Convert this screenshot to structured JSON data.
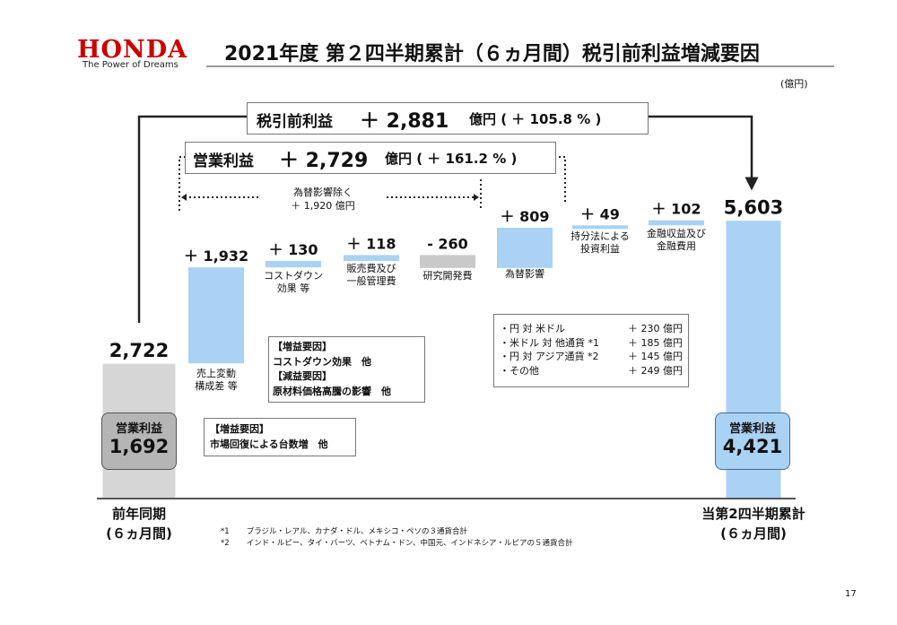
{
  "header": {
    "logo_word": "HONDA",
    "logo_tagline": "The Power of Dreams",
    "title": "2021年度 第２四半期累計（６ヵ月間）税引前利益増減要因",
    "unit": "(億円)",
    "page_number": "17"
  },
  "annotations": {
    "pretax_label": "税引前利益",
    "pretax_delta": "＋ 2,881",
    "pretax_unit_pct": "億円 ( ＋ 105.8 % )",
    "op_label": "営業利益",
    "op_delta": "＋ 2,729",
    "op_unit_pct": "億円 ( ＋ 161.2 % )",
    "fx_excl_line1": "為替影響除く",
    "fx_excl_line2": "＋ 1,920 億円"
  },
  "boxes": {
    "prior_op_label": "営業利益",
    "prior_op_value": "1,692",
    "current_op_label": "営業利益",
    "current_op_value": "4,421",
    "cost_box": [
      "【増益要因】",
      "コストダウン効果　他",
      "【減益要因】",
      "原材料価格高騰の影響　他"
    ],
    "sales_box": [
      "【増益要因】",
      "市場回復による台数増　他"
    ],
    "fx_breakdown": [
      {
        "label": "・円 対 米ドル",
        "value": "＋ 230 億円"
      },
      {
        "label": "・米ドル 対 他通貨 *1",
        "value": "＋ 185 億円"
      },
      {
        "label": "・円 対 アジア通貨 *2",
        "value": "＋ 145 億円"
      },
      {
        "label": "・その他",
        "value": "＋ 249 億円"
      }
    ]
  },
  "footnotes": [
    {
      "mark": "*1",
      "text": "ブラジル・レアル、カナダ・ドル、メキシコ・ペソの３通貨合計"
    },
    {
      "mark": "*2",
      "text": "インド・ルピー、タイ・バーツ、ベトナム・ドン、中国元、インドネシア・ルピアの５通貨合計"
    }
  ],
  "chart_data": {
    "type": "bar",
    "subtype": "waterfall",
    "categories": [
      "前年同期\n(６ヵ月間)",
      "売上変動\n構成差 等",
      "コストダウン\n効果 等",
      "販売費及び\n一般管理費",
      "研究開発費",
      "為替影響",
      "持分法による\n投資利益",
      "金融収益及び\n金融費用",
      "当第2四半期累計\n(６ヵ月間)"
    ],
    "category_lines": [
      [
        "前年同期",
        "(６ヵ月間)"
      ],
      [
        "売上変動",
        "構成差 等"
      ],
      [
        "コストダウン",
        "効果 等"
      ],
      [
        "販売費及び",
        "一般管理費"
      ],
      [
        "研究開発費"
      ],
      [
        "為替影響"
      ],
      [
        "持分法による",
        "投資利益"
      ],
      [
        "金融収益及び",
        "金融費用"
      ],
      [
        "当第2四半期累計",
        "(６ヵ月間)"
      ]
    ],
    "values": [
      2722,
      1932,
      130,
      118,
      -260,
      809,
      49,
      102,
      5603
    ],
    "value_labels": [
      "2,722",
      "＋ 1,932",
      "＋ 130",
      "＋ 118",
      "- 260",
      "＋ 809",
      "＋ 49",
      "＋ 102",
      "5,603"
    ],
    "kinds": [
      "total",
      "delta",
      "delta",
      "delta",
      "delta",
      "delta",
      "delta",
      "delta",
      "total"
    ],
    "colors": {
      "increase": "#a9d2f5",
      "decrease": "#c9c9c9",
      "prior_total": "#d6d6d6",
      "current_total": "#a9d2f5",
      "box_gray": "#b5b5b5",
      "box_blue": "#a9d2f5"
    }
  }
}
